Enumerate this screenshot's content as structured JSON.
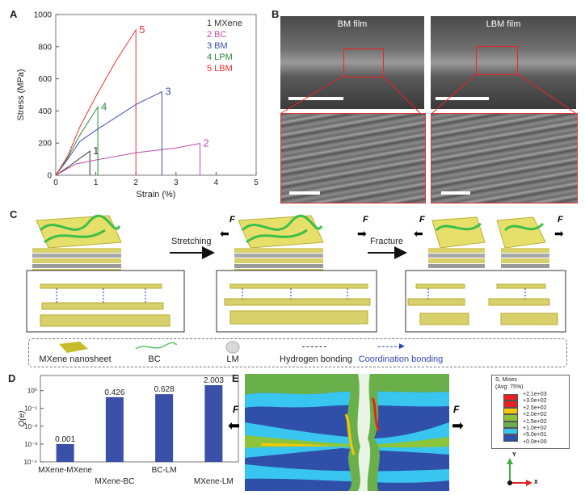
{
  "panels": {
    "A": "A",
    "B": "B",
    "C": "C",
    "D": "D",
    "E": "E"
  },
  "chart_data": [
    {
      "type": "line",
      "title": "",
      "xlabel": "Strain (%)",
      "ylabel": "Stress (MPa)",
      "xlim": [
        0,
        5
      ],
      "ylim": [
        0,
        1000
      ],
      "xticks": [
        "0",
        "1",
        "2",
        "3",
        "4",
        "5"
      ],
      "yticks": [
        "0",
        "200",
        "400",
        "600",
        "800",
        "1000"
      ],
      "legend_position": "top-right",
      "series": [
        {
          "id": "1",
          "name": "MXene",
          "color": "#333333",
          "x": [
            0,
            0.3,
            0.6,
            0.85,
            0.85
          ],
          "y": [
            0,
            50,
            105,
            150,
            0
          ]
        },
        {
          "id": "2",
          "name": "BC",
          "color": "#c04ab0",
          "x": [
            0,
            0.5,
            1,
            2,
            3,
            3.6,
            3.6
          ],
          "y": [
            0,
            70,
            95,
            140,
            170,
            198,
            0
          ]
        },
        {
          "id": "3",
          "name": "BM",
          "color": "#3b4fb0",
          "x": [
            0,
            0.3,
            0.6,
            1,
            1.5,
            2,
            2.65,
            2.65
          ],
          "y": [
            0,
            100,
            210,
            280,
            360,
            440,
            520,
            0
          ]
        },
        {
          "id": "4",
          "name": "LPM",
          "color": "#2e8b3e",
          "x": [
            0,
            0.3,
            0.6,
            1.05,
            1.05
          ],
          "y": [
            0,
            110,
            250,
            425,
            0
          ]
        },
        {
          "id": "5",
          "name": "LBM",
          "color": "#f03030",
          "x": [
            0,
            0.3,
            0.6,
            1,
            1.5,
            2,
            2
          ],
          "y": [
            0,
            120,
            300,
            490,
            710,
            905,
            0
          ]
        }
      ]
    },
    {
      "type": "bar",
      "xlabel": "",
      "ylabel": "Q(e)",
      "yscale": "log",
      "ylim": [
        0.0001,
        7
      ],
      "yticks": [
        "10⁰",
        "10⁻¹",
        "10⁻²",
        "10⁻³",
        "10⁻⁴"
      ],
      "ytick_values": [
        1,
        0.1,
        0.01,
        0.001,
        0.0001
      ],
      "categories": [
        "MXene-MXene",
        "MXene-BC",
        "BC-LM",
        "MXene-LM"
      ],
      "values": [
        0.001,
        0.426,
        0.628,
        2.003
      ],
      "labels": [
        "0.001",
        "0.426",
        "0.628",
        "2.003"
      ],
      "color": "#3a4fa8"
    }
  ],
  "panelB": {
    "left_title": "BM film",
    "right_title": "LBM film"
  },
  "panelC": {
    "steps": [
      "Stretching",
      "Fracture"
    ],
    "force": "F",
    "legend": [
      "MXene nanosheet",
      "BC",
      "LM",
      "Hydrogen bonding",
      "Coordination bonding"
    ]
  },
  "panelE": {
    "force": "F",
    "legend_title": "S, Mises",
    "legend_subtitle": "(Avg: 75%)",
    "levels": [
      "+2.1e+03",
      "+3.0e+02",
      "+2.5e+02",
      "+2.0e+02",
      "+1.5e+02",
      "+1.0e+02",
      "+5.0e+01",
      "+0.0e+00"
    ],
    "colors": [
      "#e82020",
      "#e82020",
      "#f5c800",
      "#8cc43c",
      "#6ab04a",
      "#38c6f0",
      "#2f4fa8"
    ],
    "axis_y": "Y",
    "axis_x": "X"
  }
}
